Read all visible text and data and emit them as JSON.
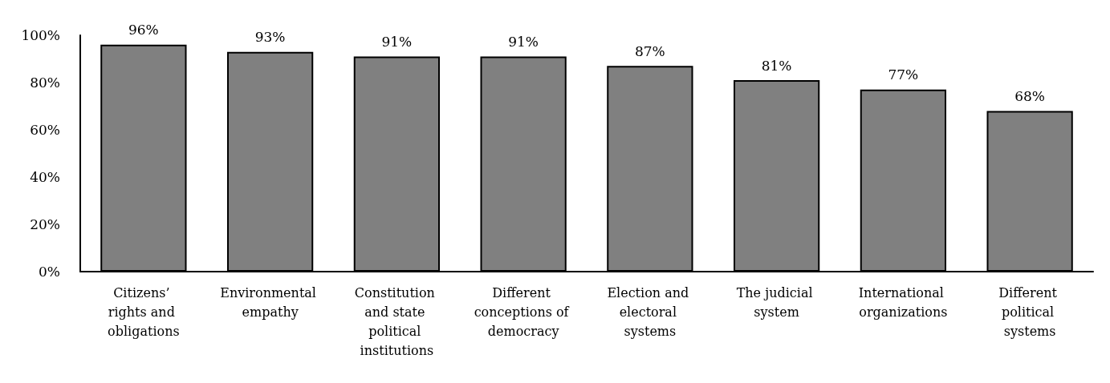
{
  "chart_data": {
    "type": "bar",
    "categories": [
      "Citizens’ rights and obligations",
      "Environmental empathy",
      "Constitution and state political institutions",
      "Different conceptions of democracy",
      "Election and electoral systems",
      "The judicial system",
      "International organizations",
      "Different political systems"
    ],
    "values": [
      96,
      93,
      91,
      91,
      87,
      81,
      77,
      68
    ],
    "color": "#808080",
    "value_labels": [
      "96%",
      "93%",
      "91%",
      "91%",
      "87%",
      "81%",
      "77%",
      "68%"
    ],
    "ylim": [
      0,
      100
    ],
    "yticks": [
      {
        "value": 0,
        "label": "0%"
      },
      {
        "value": 20,
        "label": "20%"
      },
      {
        "value": 40,
        "label": "40%"
      },
      {
        "value": 60,
        "label": "60%"
      },
      {
        "value": 80,
        "label": "80%"
      },
      {
        "value": 100,
        "label": "100%"
      }
    ],
    "grid": false
  }
}
